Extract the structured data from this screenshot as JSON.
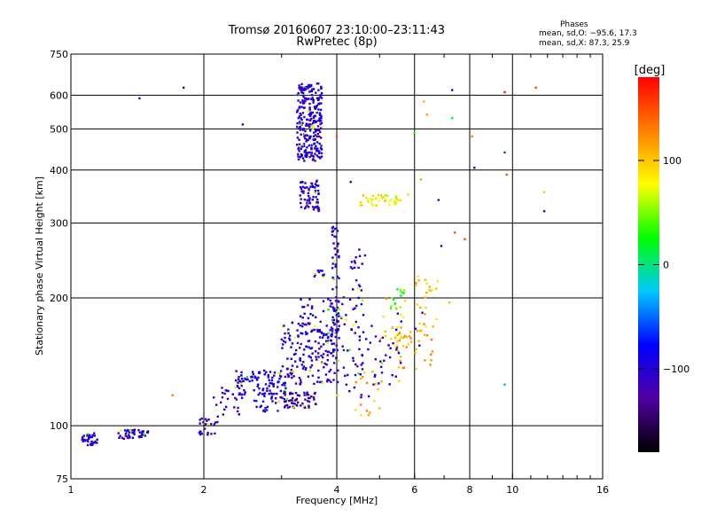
{
  "chart_data": {
    "type": "scatter",
    "title": "Tromsø 20160607 23:10:00–23:11:43",
    "subtitle": "RwPretec (8p)",
    "xlabel": "Frequency [MHz]",
    "ylabel": "Stationary phase Virtual Height [km]",
    "x_scale": "log",
    "y_scale": "log",
    "xlim": [
      1,
      16
    ],
    "ylim": [
      75,
      750
    ],
    "x_ticks": [
      "1",
      "2",
      "4",
      "6",
      "8",
      "10",
      "16"
    ],
    "x_tick_values": [
      1,
      2,
      4,
      6,
      8,
      10,
      16
    ],
    "y_ticks": [
      "75",
      "100",
      "200",
      "300",
      "400",
      "500",
      "600",
      "750"
    ],
    "y_tick_values": [
      75,
      100,
      200,
      300,
      400,
      500,
      600,
      750
    ],
    "grid": true,
    "stats": {
      "header": "Phases",
      "line_o": "mean, sd,O: −95.6, 17.3",
      "line_x": "mean, sd,X:  87.3, 25.9"
    },
    "colorbar": {
      "label": "[deg]",
      "range": [
        -180,
        180
      ],
      "ticks": [
        "100",
        "0",
        "−100"
      ],
      "tick_values": [
        100,
        0,
        -100
      ],
      "colors": [
        "#000000",
        "#5000a0",
        "#0000ff",
        "#00c8ff",
        "#00ff00",
        "#ffff00",
        "#ff8000",
        "#ff0000"
      ]
    },
    "clusters": [
      {
        "x": [
          1.05,
          1.15
        ],
        "y": [
          90,
          96
        ],
        "n": 35,
        "phase": -105
      },
      {
        "x": [
          1.28,
          1.5
        ],
        "y": [
          93,
          98
        ],
        "n": 45,
        "phase": -105
      },
      {
        "x": [
          1.95,
          2.15
        ],
        "y": [
          95,
          104
        ],
        "n": 25,
        "phase": -110
      },
      {
        "x": [
          2.1,
          2.45
        ],
        "y": [
          105,
          125
        ],
        "n": 25,
        "phase": -100
      },
      {
        "x": [
          2.35,
          3.2
        ],
        "y": [
          118,
          135
        ],
        "n": 110,
        "phase": -95
      },
      {
        "x": [
          2.6,
          3.0
        ],
        "y": [
          108,
          120
        ],
        "n": 25,
        "phase": -90
      },
      {
        "x": [
          3.0,
          3.6
        ],
        "y": [
          110,
          120
        ],
        "n": 60,
        "phase": -120
      },
      {
        "x": [
          3.0,
          4.0
        ],
        "y": [
          125,
          175
        ],
        "n": 130,
        "phase": -100
      },
      {
        "x": [
          3.3,
          4.0
        ],
        "y": [
          140,
          200
        ],
        "n": 80,
        "phase": -100
      },
      {
        "x": [
          3.9,
          4.05
        ],
        "y": [
          160,
          300
        ],
        "n": 60,
        "phase": -100
      },
      {
        "x": [
          3.5,
          3.75
        ],
        "y": [
          222,
          232
        ],
        "n": 10,
        "phase": -95
      },
      {
        "x": [
          3.3,
          3.65
        ],
        "y": [
          320,
          380
        ],
        "n": 70,
        "phase": -105
      },
      {
        "x": [
          3.25,
          3.7
        ],
        "y": [
          420,
          640
        ],
        "n": 280,
        "phase": -100
      },
      {
        "x": [
          4.0,
          4.6
        ],
        "y": [
          115,
          220
        ],
        "n": 55,
        "phase": -100
      },
      {
        "x": [
          4.3,
          4.7
        ],
        "y": [
          230,
          260
        ],
        "n": 12,
        "phase": -100
      },
      {
        "x": [
          4.5,
          5.6
        ],
        "y": [
          125,
          180
        ],
        "n": 40,
        "phase": -95
      },
      {
        "x": [
          4.4,
          5.1
        ],
        "y": [
          105,
          135
        ],
        "n": 18,
        "phase": 110
      },
      {
        "x": [
          5.0,
          5.8
        ],
        "y": [
          150,
          200
        ],
        "n": 25,
        "phase": 105
      },
      {
        "x": [
          5.5,
          6.6
        ],
        "y": [
          135,
          170
        ],
        "n": 35,
        "phase": 115
      },
      {
        "x": [
          6.0,
          6.8
        ],
        "y": [
          170,
          225
        ],
        "n": 25,
        "phase": 110
      },
      {
        "x": [
          4.5,
          5.6
        ],
        "y": [
          330,
          350
        ],
        "n": 40,
        "phase": 80
      },
      {
        "x": [
          5.3,
          5.7
        ],
        "y": [
          180,
          215
        ],
        "n": 15,
        "phase": 40
      }
    ],
    "points": [
      {
        "x": 1.43,
        "y": 590,
        "phase": -110
      },
      {
        "x": 1.8,
        "y": 625,
        "phase": -110
      },
      {
        "x": 2.45,
        "y": 512,
        "phase": -110
      },
      {
        "x": 4.0,
        "y": 480,
        "phase": 150
      },
      {
        "x": 4.3,
        "y": 375,
        "phase": -105
      },
      {
        "x": 5.5,
        "y": 340,
        "phase": 90
      },
      {
        "x": 6.2,
        "y": 380,
        "phase": 110
      },
      {
        "x": 6.3,
        "y": 580,
        "phase": 110
      },
      {
        "x": 6.4,
        "y": 540,
        "phase": 115
      },
      {
        "x": 6.0,
        "y": 490,
        "phase": 30
      },
      {
        "x": 6.8,
        "y": 340,
        "phase": -110
      },
      {
        "x": 6.9,
        "y": 265,
        "phase": -110
      },
      {
        "x": 7.3,
        "y": 617,
        "phase": -105
      },
      {
        "x": 7.3,
        "y": 530,
        "phase": 20
      },
      {
        "x": 7.4,
        "y": 285,
        "phase": 150
      },
      {
        "x": 7.8,
        "y": 275,
        "phase": 150
      },
      {
        "x": 8.1,
        "y": 480,
        "phase": 130
      },
      {
        "x": 8.2,
        "y": 405,
        "phase": -110
      },
      {
        "x": 9.6,
        "y": 610,
        "phase": 175
      },
      {
        "x": 9.6,
        "y": 440,
        "phase": -60
      },
      {
        "x": 9.7,
        "y": 390,
        "phase": 150
      },
      {
        "x": 9.6,
        "y": 125,
        "phase": -30
      },
      {
        "x": 11.3,
        "y": 625,
        "phase": 155
      },
      {
        "x": 11.8,
        "y": 355,
        "phase": 100
      },
      {
        "x": 11.8,
        "y": 320,
        "phase": -110
      },
      {
        "x": 1.7,
        "y": 118,
        "phase": 130
      },
      {
        "x": 5.8,
        "y": 350,
        "phase": 90
      },
      {
        "x": 7.2,
        "y": 195,
        "phase": 110
      }
    ]
  }
}
